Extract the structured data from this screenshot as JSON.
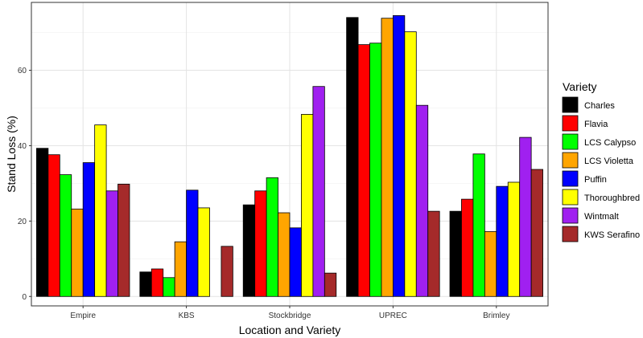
{
  "chart_data": {
    "type": "bar",
    "xlabel": "Location and Variety",
    "ylabel": "Stand Loss (%)",
    "ylim": [
      -2.5,
      78
    ],
    "yticks": [
      0,
      20,
      40,
      60
    ],
    "grid": true,
    "legend_placement": "right",
    "legend_title": "Variety",
    "categories": [
      "Empire",
      "KBS",
      "Stockbridge",
      "UPREC",
      "Brimley"
    ],
    "series": [
      {
        "name": "Charles",
        "color": "#000000",
        "values": [
          39.3,
          6.5,
          24.3,
          74.0,
          22.6
        ]
      },
      {
        "name": "Flavia",
        "color": "#ff0000",
        "values": [
          37.6,
          7.3,
          28.0,
          66.8,
          25.8
        ]
      },
      {
        "name": "LCS Calypso",
        "color": "#00ff00",
        "values": [
          32.3,
          5.0,
          31.5,
          67.2,
          37.8
        ]
      },
      {
        "name": "LCS Violetta",
        "color": "#ffa500",
        "values": [
          23.2,
          14.5,
          22.2,
          73.8,
          17.2
        ]
      },
      {
        "name": "Puffin",
        "color": "#0000ff",
        "values": [
          35.5,
          28.2,
          18.2,
          74.5,
          29.2
        ]
      },
      {
        "name": "Thoroughbred",
        "color": "#ffff00",
        "values": [
          45.5,
          23.5,
          48.3,
          70.2,
          30.3
        ]
      },
      {
        "name": "Wintmalt",
        "color": "#a020f0",
        "values": [
          28.0,
          0,
          55.7,
          50.7,
          42.2
        ]
      },
      {
        "name": "KWS Serafino",
        "color": "#a52a2a",
        "values": [
          29.8,
          13.3,
          6.2,
          22.6,
          33.7
        ]
      }
    ]
  }
}
